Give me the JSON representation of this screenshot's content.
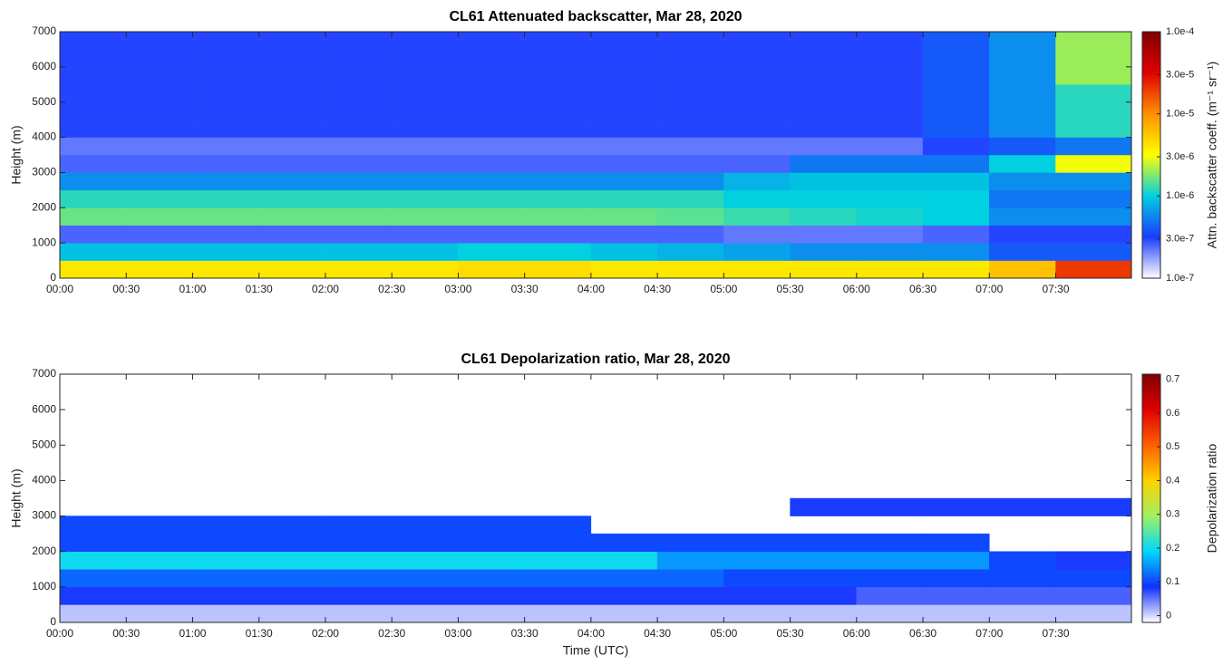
{
  "chart_data": [
    {
      "type": "heatmap",
      "title": "CL61 Attenuated backscatter, Mar 28, 2020",
      "ylabel": "Height (m)",
      "clabel": "Attn. backscatter coeff. (m⁻¹ sr⁻¹)",
      "colorscale": "log",
      "colormap": [
        "#ffffff",
        "#1a3cff",
        "#00d0e0",
        "#ffff00",
        "#ff9000",
        "#e00000",
        "#800000"
      ],
      "clim": [
        1e-07,
        0.0001
      ],
      "cticks": [
        {
          "value": 1e-07,
          "label": "1.0e-7"
        },
        {
          "value": 3e-07,
          "label": "3.0e-7"
        },
        {
          "value": 1e-06,
          "label": "1.0e-6"
        },
        {
          "value": 3e-06,
          "label": "3.0e-6"
        },
        {
          "value": 1e-05,
          "label": "1.0e-5"
        },
        {
          "value": 3e-05,
          "label": "3.0e-5"
        },
        {
          "value": 0.0001,
          "label": "1.0e-4"
        }
      ],
      "xlim": [
        0,
        8.07
      ],
      "ylim": [
        0,
        7000
      ],
      "xticks": [
        {
          "value": 0,
          "label": "00:00"
        },
        {
          "value": 0.5,
          "label": "00:30"
        },
        {
          "value": 1,
          "label": "01:00"
        },
        {
          "value": 1.5,
          "label": "01:30"
        },
        {
          "value": 2,
          "label": "02:00"
        },
        {
          "value": 2.5,
          "label": "02:30"
        },
        {
          "value": 3,
          "label": "03:00"
        },
        {
          "value": 3.5,
          "label": "03:30"
        },
        {
          "value": 4,
          "label": "04:00"
        },
        {
          "value": 4.5,
          "label": "04:30"
        },
        {
          "value": 5,
          "label": "05:00"
        },
        {
          "value": 5.5,
          "label": "05:30"
        },
        {
          "value": 6,
          "label": "06:00"
        },
        {
          "value": 6.5,
          "label": "06:30"
        },
        {
          "value": 7,
          "label": "07:00"
        },
        {
          "value": 7.5,
          "label": "07:30"
        }
      ],
      "yticks": [
        0,
        1000,
        2000,
        3000,
        4000,
        5000,
        6000,
        7000
      ],
      "x": [
        0,
        0.5,
        1,
        1.5,
        2,
        2.5,
        3,
        3.5,
        4,
        4.5,
        5,
        5.5,
        6,
        6.5,
        7,
        7.5
      ],
      "y": [
        0,
        500,
        1000,
        1500,
        2000,
        2500,
        3000,
        3500,
        4000,
        4500,
        5000,
        5500,
        6000,
        6500
      ],
      "values": [
        [
          4e-06,
          4e-06,
          4e-06,
          4e-06,
          4e-06,
          4e-06,
          4.5e-06,
          4.5e-06,
          4e-06,
          4e-06,
          4e-06,
          4e-06,
          4e-06,
          4e-06,
          6e-06,
          2e-05
        ],
        [
          9e-07,
          9e-07,
          9e-07,
          9e-07,
          9e-07,
          9e-07,
          1e-06,
          1e-06,
          9e-07,
          8e-07,
          7e-07,
          6e-07,
          6e-07,
          6e-07,
          4e-07,
          4e-07
        ],
        [
          2.5e-07,
          2.5e-07,
          2.5e-07,
          2.5e-07,
          2.5e-07,
          2.5e-07,
          2.5e-07,
          2.5e-07,
          2.5e-07,
          2.5e-07,
          2.2e-07,
          2.2e-07,
          2.2e-07,
          2.5e-07,
          3e-07,
          3e-07
        ],
        [
          1.6e-06,
          1.6e-06,
          1.6e-06,
          1.6e-06,
          1.6e-06,
          1.6e-06,
          1.6e-06,
          1.6e-06,
          1.6e-06,
          1.5e-06,
          1.3e-06,
          1.2e-06,
          1.1e-06,
          1e-06,
          6e-07,
          6e-07
        ],
        [
          1.2e-06,
          1.2e-06,
          1.2e-06,
          1.2e-06,
          1.2e-06,
          1.2e-06,
          1.2e-06,
          1.2e-06,
          1.2e-06,
          1.2e-06,
          1e-06,
          1e-06,
          1e-06,
          1e-06,
          5e-07,
          5e-07
        ],
        [
          6e-07,
          6e-07,
          6e-07,
          6e-07,
          6e-07,
          6e-07,
          6e-07,
          6e-07,
          6e-07,
          6e-07,
          8e-07,
          9e-07,
          9e-07,
          9e-07,
          6e-07,
          6e-07
        ],
        [
          2.5e-07,
          2.5e-07,
          2.5e-07,
          2.5e-07,
          2.5e-07,
          2.5e-07,
          2.5e-07,
          2.5e-07,
          2.5e-07,
          2.5e-07,
          2.5e-07,
          5e-07,
          5e-07,
          5e-07,
          1e-06,
          3e-06
        ],
        [
          2.2e-07,
          2.2e-07,
          2.2e-07,
          2.2e-07,
          2.2e-07,
          2.2e-07,
          2.2e-07,
          2.2e-07,
          2.2e-07,
          2.2e-07,
          2.2e-07,
          2.2e-07,
          2.2e-07,
          3e-07,
          4e-07,
          5e-07
        ],
        [
          3e-07,
          3e-07,
          3e-07,
          3e-07,
          3e-07,
          3e-07,
          3e-07,
          3e-07,
          3e-07,
          3e-07,
          3e-07,
          3e-07,
          3e-07,
          4e-07,
          6e-07,
          1.2e-06
        ],
        [
          3e-07,
          3e-07,
          3e-07,
          3e-07,
          3e-07,
          3e-07,
          3e-07,
          3e-07,
          3e-07,
          3e-07,
          3e-07,
          3e-07,
          3e-07,
          4e-07,
          6e-07,
          1.2e-06
        ],
        [
          3e-07,
          3e-07,
          3e-07,
          3e-07,
          3e-07,
          3e-07,
          3e-07,
          3e-07,
          3e-07,
          3e-07,
          3e-07,
          3e-07,
          3e-07,
          4e-07,
          6e-07,
          1.2e-06
        ],
        [
          3e-07,
          3e-07,
          3e-07,
          3e-07,
          3e-07,
          3e-07,
          3e-07,
          3e-07,
          3e-07,
          3e-07,
          3e-07,
          3e-07,
          3e-07,
          4e-07,
          6e-07,
          2e-06
        ],
        [
          3e-07,
          3e-07,
          3e-07,
          3e-07,
          3e-07,
          3e-07,
          3e-07,
          3e-07,
          3e-07,
          3e-07,
          3e-07,
          3e-07,
          3e-07,
          4e-07,
          6e-07,
          2e-06
        ],
        [
          3e-07,
          3e-07,
          3e-07,
          3e-07,
          3e-07,
          3e-07,
          3e-07,
          3e-07,
          3e-07,
          3e-07,
          3e-07,
          3e-07,
          3e-07,
          4e-07,
          6e-07,
          2e-06
        ]
      ]
    },
    {
      "type": "heatmap",
      "title": "CL61 Depolarization ratio, Mar 28, 2020",
      "ylabel": "Height (m)",
      "xlabel": "Time (UTC)",
      "clabel": "Depolarization ratio",
      "colorscale": "linear",
      "colormap": [
        "#ffffff",
        "#1030ff",
        "#00d8ff",
        "#a0f060",
        "#ffd000",
        "#ff6000",
        "#e00000",
        "#800000"
      ],
      "clim": [
        -0.02,
        0.715
      ],
      "cticks": [
        0,
        0.1,
        0.2,
        0.3,
        0.4,
        0.5,
        0.6,
        0.7
      ],
      "xlim": [
        0,
        8.07
      ],
      "ylim": [
        0,
        7000
      ],
      "xticks": [
        {
          "value": 0,
          "label": "00:00"
        },
        {
          "value": 0.5,
          "label": "00:30"
        },
        {
          "value": 1,
          "label": "01:00"
        },
        {
          "value": 1.5,
          "label": "01:30"
        },
        {
          "value": 2,
          "label": "02:00"
        },
        {
          "value": 2.5,
          "label": "02:30"
        },
        {
          "value": 3,
          "label": "03:00"
        },
        {
          "value": 3.5,
          "label": "03:30"
        },
        {
          "value": 4,
          "label": "04:00"
        },
        {
          "value": 4.5,
          "label": "04:30"
        },
        {
          "value": 5,
          "label": "05:00"
        },
        {
          "value": 5.5,
          "label": "05:30"
        },
        {
          "value": 6,
          "label": "06:00"
        },
        {
          "value": 6.5,
          "label": "06:30"
        },
        {
          "value": 7,
          "label": "07:00"
        },
        {
          "value": 7.5,
          "label": "07:30"
        }
      ],
      "yticks": [
        0,
        1000,
        2000,
        3000,
        4000,
        5000,
        6000,
        7000
      ],
      "x": [
        0,
        0.5,
        1,
        1.5,
        2,
        2.5,
        3,
        3.5,
        4,
        4.5,
        5,
        5.5,
        6,
        6.5,
        7,
        7.5
      ],
      "y": [
        0,
        500,
        1000,
        1500,
        2000,
        2500,
        3000,
        3500,
        4000,
        4500,
        5000,
        5500,
        6000,
        6500
      ],
      "values": [
        [
          0.01,
          0.01,
          0.01,
          0.01,
          0.01,
          0.01,
          0.01,
          0.01,
          0.01,
          0.01,
          0.01,
          0.01,
          0.01,
          0.01,
          0.01,
          0.01
        ],
        [
          0.08,
          0.08,
          0.08,
          0.08,
          0.08,
          0.08,
          0.08,
          0.08,
          0.08,
          0.08,
          0.08,
          0.08,
          0.06,
          0.06,
          0.06,
          0.06
        ],
        [
          0.12,
          0.12,
          0.12,
          0.12,
          0.12,
          0.12,
          0.12,
          0.12,
          0.12,
          0.12,
          0.1,
          0.1,
          0.1,
          0.1,
          0.1,
          0.1
        ],
        [
          0.2,
          0.2,
          0.2,
          0.2,
          0.2,
          0.2,
          0.2,
          0.2,
          0.2,
          0.15,
          0.15,
          0.15,
          0.15,
          0.15,
          0.1,
          0.08
        ],
        [
          0.1,
          0.1,
          0.1,
          0.1,
          0.1,
          0.1,
          0.1,
          0.1,
          0.1,
          0.1,
          0.1,
          0.1,
          0.1,
          0.1,
          null,
          null
        ],
        [
          0.1,
          0.1,
          0.1,
          0.1,
          0.1,
          0.1,
          0.1,
          0.1,
          null,
          null,
          null,
          null,
          null,
          null,
          null,
          null
        ],
        [
          null,
          null,
          null,
          null,
          null,
          null,
          null,
          null,
          null,
          null,
          null,
          0.08,
          0.08,
          0.08,
          0.08,
          0.08
        ],
        [
          null,
          null,
          null,
          null,
          null,
          null,
          null,
          null,
          null,
          null,
          null,
          null,
          null,
          null,
          null,
          null
        ],
        [
          null,
          null,
          null,
          null,
          null,
          null,
          null,
          null,
          null,
          null,
          null,
          null,
          null,
          null,
          null,
          null
        ],
        [
          null,
          null,
          null,
          null,
          null,
          null,
          null,
          null,
          null,
          null,
          null,
          null,
          null,
          null,
          null,
          null
        ],
        [
          null,
          null,
          null,
          null,
          null,
          null,
          null,
          null,
          null,
          null,
          null,
          null,
          null,
          null,
          null,
          null
        ],
        [
          null,
          null,
          null,
          null,
          null,
          null,
          null,
          null,
          null,
          null,
          null,
          null,
          null,
          null,
          null,
          null
        ],
        [
          null,
          null,
          null,
          null,
          null,
          null,
          null,
          null,
          null,
          null,
          null,
          null,
          null,
          null,
          null,
          null
        ],
        [
          null,
          null,
          null,
          null,
          null,
          null,
          null,
          null,
          null,
          null,
          null,
          null,
          null,
          null,
          null,
          null
        ]
      ]
    }
  ]
}
